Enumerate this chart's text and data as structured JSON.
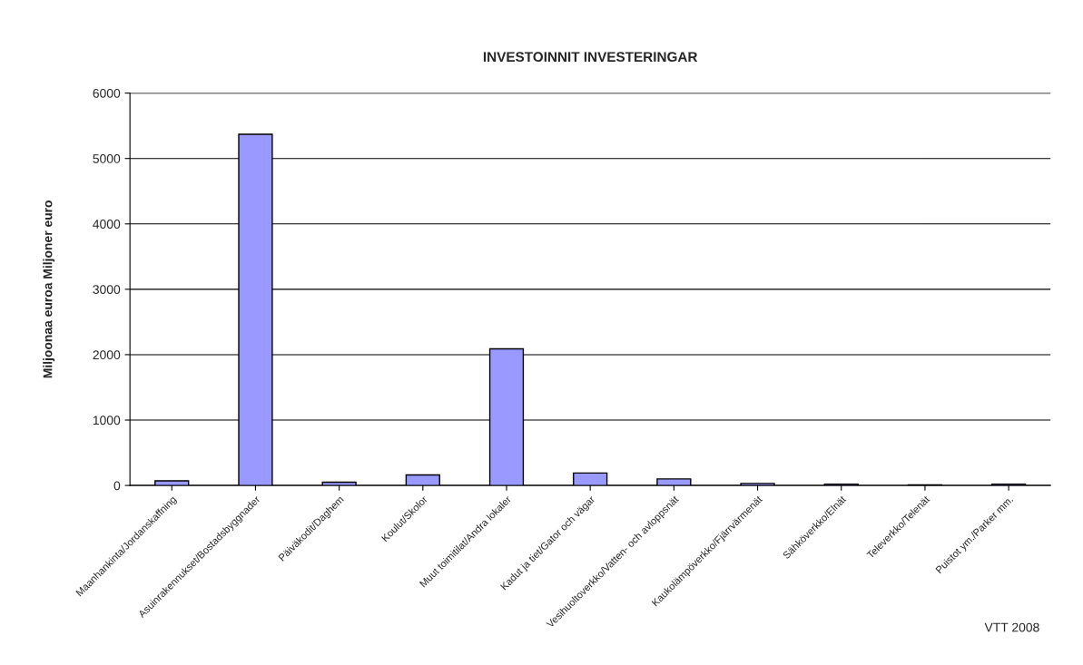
{
  "chart_data": {
    "type": "bar",
    "title": "INVESTOINNIT INVESTERINGAR",
    "ylabel": "Miljoonaa euroa Miljoner euro",
    "categories": [
      "Maanhankinta/Jordanskaffning",
      "Asuinrakennukset/Bostadsbyggnader",
      "Päiväkodit/Daghem",
      "Koulut/Skolor",
      "Muut toimitilat/Andra lokaler",
      "Kadut ja tiet/Gator och vägar",
      "Vesihuoltoverkko/Vatten- och avloppsnät",
      "Kaukolämpöverkko/Fjärrvärmenät",
      "Sähköverkko/Elnät",
      "Televerkko/Telenät",
      "Puistot ym./Parker mm."
    ],
    "values": [
      70,
      5370,
      50,
      160,
      2090,
      190,
      100,
      30,
      20,
      10,
      20
    ],
    "color": "#9999ff",
    "ylim": [
      0,
      6000
    ],
    "yticks": [
      0,
      1000,
      2000,
      3000,
      4000,
      5000,
      6000
    ],
    "grid": "y",
    "annotations": [
      "VTT 2008"
    ]
  }
}
